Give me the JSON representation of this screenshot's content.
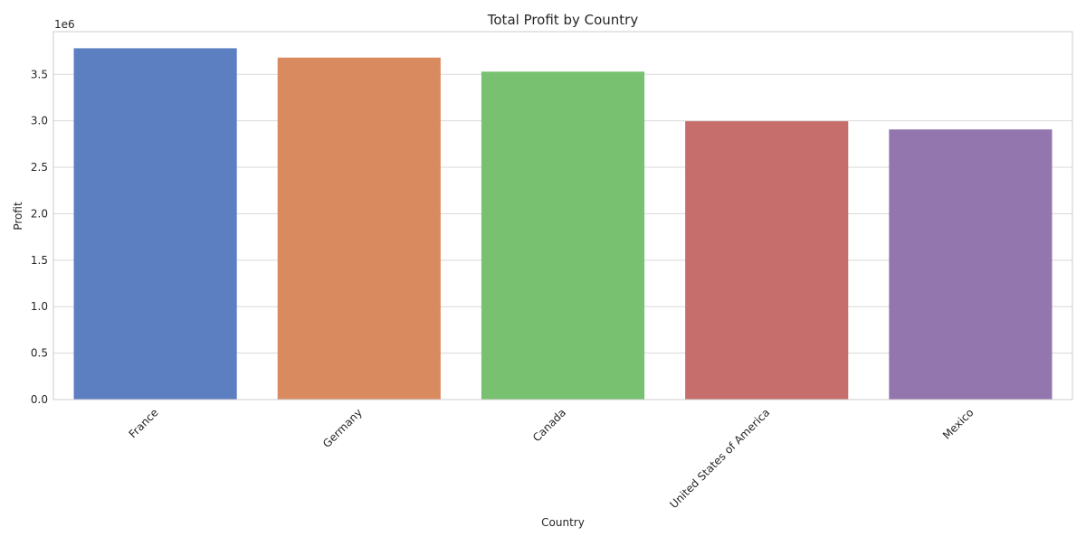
{
  "chart_data": {
    "type": "bar",
    "title": "Total Profit by Country",
    "xlabel": "Country",
    "ylabel": "Profit",
    "y_multiplier_label": "1e6",
    "y_scale_factor": 1000000,
    "categories": [
      "France",
      "Germany",
      "Canada",
      "United States of America",
      "Mexico"
    ],
    "values": [
      3781020.78,
      3680388.82,
      3529228.89,
      2995540.67,
      2907523.11
    ],
    "colors": [
      "#5b7fc1",
      "#d98b5f",
      "#77c170",
      "#c66e6c",
      "#9376ad"
    ],
    "ylim": [
      0,
      3960000
    ],
    "y_ticks": [
      0,
      500000,
      1000000,
      1500000,
      2000000,
      2500000,
      3000000,
      3500000
    ],
    "y_tick_labels": [
      "0.0",
      "0.5",
      "1.0",
      "1.5",
      "2.0",
      "2.5",
      "3.0",
      "3.5"
    ],
    "grid": true,
    "legend": "none"
  }
}
